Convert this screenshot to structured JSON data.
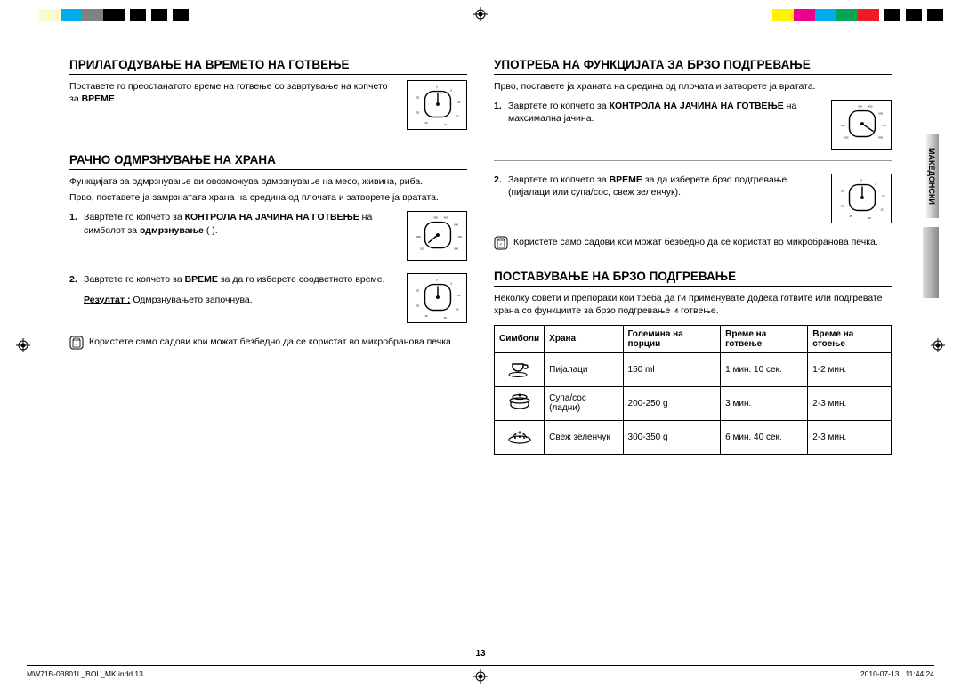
{
  "colorbar_left": [
    "#ffffff",
    "#fff9d0",
    "#00aeef",
    "#808285",
    "#000000",
    "#ffffff",
    "#000000",
    "#ffffff",
    "#000000",
    "#ffffff",
    "#000000"
  ],
  "colorbar_left_widths": [
    24,
    24,
    24,
    24,
    24,
    6,
    18,
    6,
    18,
    6,
    18
  ],
  "colorbar_right": [
    "#fff200",
    "#ec008c",
    "#00aeef",
    "#00a651",
    "#ed1c24",
    "#ffffff",
    "#000000",
    "#ffffff",
    "#000000",
    "#ffffff",
    "#000000"
  ],
  "colorbar_right_widths": [
    24,
    24,
    24,
    24,
    24,
    6,
    18,
    6,
    18,
    6,
    18
  ],
  "sidebar_label": "МАКЕДОНСКИ",
  "page_number": "13",
  "footer_left": "MW71B-03801L_BOL_MK.indd   13",
  "footer_date": "2010-07-13",
  "footer_time": "11:44:24",
  "left_col": {
    "s1": {
      "heading": "ПРИЛАГОДУВАЊЕ НА ВРЕМЕТО НА ГОТВЕЊЕ",
      "p1a": "Поставете го преостанатото време на готвење со завртување на копчето за ",
      "p1b": "ВРЕМЕ",
      "p1c": "."
    },
    "s2": {
      "heading": "РАЧНО ОДМРЗНУВАЊЕ НА ХРАНА",
      "p1": "Функцијата за одмрзнување ви овозможува одмрзнување на месо, живина, риба.",
      "p2": "Прво, поставете ја замрзнатата храна на средина од плочата и затворете ја вратата.",
      "li1a": "Завртете го копчето за ",
      "li1b": "КОНТРОЛА НА ЈАЧИНА НА ГОТВЕЊЕ",
      "li1c": " на симболот за ",
      "li1d": "одмрзнување",
      "li1e": " (   ).",
      "li2a": "Завртете го копчето за ",
      "li2b": "ВРЕМЕ",
      "li2c": " за да го изберете соодветното време.",
      "result_label": "Резултат :",
      "result_text": "  Одмрзнувањето започнува.",
      "note": "Користете само садови кои можат безбедно да се користат во микробранова печка."
    }
  },
  "right_col": {
    "s1": {
      "heading": "УПОТРЕБА НА ФУНКЦИЈАТА ЗА БРЗО ПОДГРЕВАЊЕ",
      "p1": "Прво, поставете ја храната на средина од плочата и затворете ја вратата.",
      "li1a": "Завртете го копчето за ",
      "li1b": "КОНТРОЛА НА ЈАЧИНА НА ГОТВЕЊЕ",
      "li1c": " на максимална јачина.",
      "li2a": "Завртете го копчето за ",
      "li2b": "ВРЕМЕ",
      "li2c": " за да изберете брзо подгревање.",
      "li2d": "(пијалаци или супа/сос, свеж зеленчук).",
      "note": "Користете само садови кои можат безбедно да се користат во микробранова печка."
    },
    "s2": {
      "heading": "ПОСТАВУВАЊЕ НА БРЗО ПОДГРЕВАЊЕ",
      "p1": "Неколку совети и препораки кои треба да ги применувате додека готвите или подгревате храна со функциите за брзо подгревање и готвење.",
      "table": {
        "headers": [
          "Симболи",
          "Храна",
          "Големина на порции",
          "Време на готвење",
          "Време на стоење"
        ],
        "rows": [
          {
            "sym": "cup",
            "food": "Пијалаци",
            "size": "150 ml",
            "cook": "1 мин. 10 сек.",
            "stand": "1-2 мин."
          },
          {
            "sym": "pot",
            "food": "Супа/сос (ладни)",
            "size": "200-250 g",
            "cook": "3 мин.",
            "stand": "2-3 мин."
          },
          {
            "sym": "veg",
            "food": "Свеж зеленчук",
            "size": "300-350 g",
            "cook": "6 мин. 40 сек.",
            "stand": "2-3 мин."
          }
        ]
      }
    }
  }
}
